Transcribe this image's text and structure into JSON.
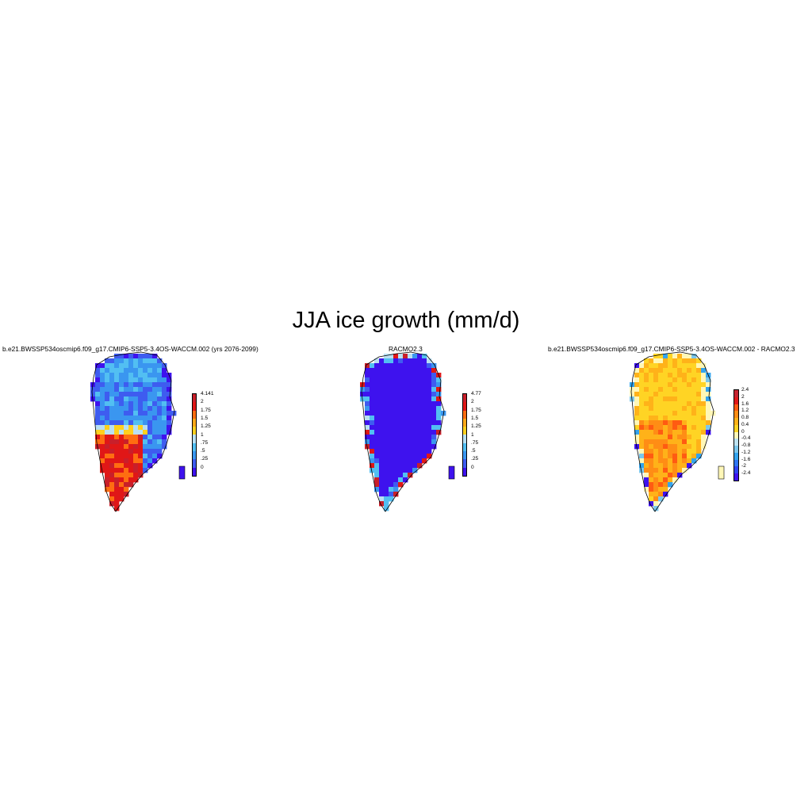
{
  "title": "JJA ice growth (mm/d)",
  "palettes": {
    "ref_colors": [
      "#3e12ee",
      "#3e5cf0",
      "#3a96f0",
      "#52bff2",
      "#b9e0f3",
      "#ffd01e",
      "#ffa91a",
      "#ff6d11",
      "#e01717",
      "#c91f2a"
    ],
    "diff_colors": [
      "#3e12ee",
      "#2f44f2",
      "#2f76f3",
      "#33a4ee",
      "#7bc7ec",
      "#bde2f0",
      "#fff7b7",
      "#ffd424",
      "#ffb219",
      "#ff8d15",
      "#ff5b12",
      "#e0181a",
      "#c52531"
    ]
  },
  "panels": [
    {
      "title": "b.e21.BWSSP534oscmip6.f09_g17.CMIP6-SSP5-3.4OS-WACCM.002 (yrs 2076-2099)",
      "colorbar_labels": [
        "4.141",
        "2",
        "1.75",
        "1.5",
        "1.25",
        "1",
        ".75",
        ".5",
        ".25",
        "0"
      ],
      "field": "model"
    },
    {
      "title": "RACMO2.3",
      "colorbar_labels": [
        "4.77",
        "2",
        "1.75",
        "1.5",
        "1.25",
        "1",
        ".75",
        ".5",
        ".25",
        "0"
      ],
      "field": "racmo"
    },
    {
      "title": "b.e21.BWSSP534oscmip6.f09_g17.CMIP6-SSP5-3.4OS-WACCM.002 - RACMO2.3",
      "colorbar_labels": [
        "2.4",
        "2",
        "1.6",
        "1.2",
        "0.8",
        "0.4",
        "0",
        "-0.4",
        "-0.8",
        "-1.2",
        "-1.6",
        "-2",
        "-2.4"
      ],
      "field": "diff"
    }
  ]
}
